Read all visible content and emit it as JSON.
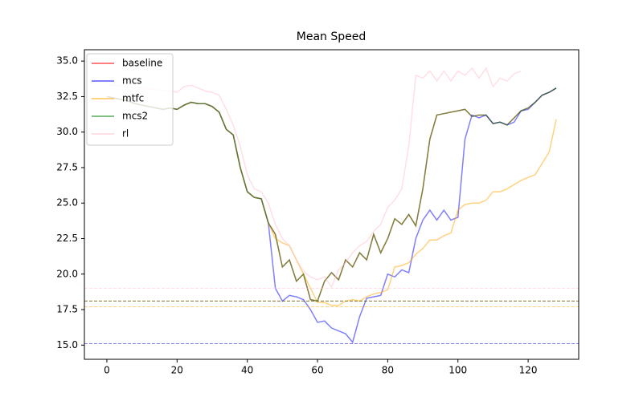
{
  "chart_data": {
    "type": "line",
    "title": "Mean Speed",
    "x": [
      0,
      2,
      4,
      6,
      8,
      10,
      12,
      14,
      16,
      18,
      20,
      22,
      24,
      26,
      28,
      30,
      32,
      34,
      36,
      38,
      40,
      42,
      44,
      46,
      48,
      50,
      52,
      54,
      56,
      58,
      60,
      62,
      64,
      66,
      68,
      70,
      72,
      74,
      76,
      78,
      80,
      82,
      84,
      86,
      88,
      90,
      92,
      94,
      96,
      98,
      100,
      102,
      104,
      106,
      108,
      110,
      112,
      114,
      116,
      118,
      120,
      122,
      124,
      126,
      128
    ],
    "series": [
      {
        "name": "baseline",
        "color": "red",
        "hline": 18.1,
        "values": [
          32.5,
          32.4,
          32.3,
          32.2,
          32.0,
          31.9,
          31.8,
          31.7,
          31.6,
          31.7,
          31.6,
          31.9,
          32.1,
          32.0,
          32.0,
          31.8,
          31.4,
          30.2,
          29.8,
          27.5,
          25.8,
          25.4,
          25.3,
          23.6,
          22.8,
          20.5,
          21.0,
          19.5,
          20.0,
          18.2,
          18.1,
          19.5,
          20.1,
          19.6,
          21.0,
          20.5,
          21.5,
          21.0,
          22.8,
          21.5,
          22.5,
          23.9,
          23.5,
          24.2,
          23.4,
          26.0,
          29.5,
          31.2,
          31.3,
          31.4,
          31.5,
          31.6,
          31.1,
          31.2,
          31.2,
          30.6,
          30.7,
          30.5,
          31.0,
          31.5,
          31.7,
          32.1,
          32.6,
          32.8,
          33.1
        ]
      },
      {
        "name": "mcs",
        "color": "blue",
        "hline": 15.1,
        "values": [
          32.5,
          32.4,
          32.3,
          32.2,
          32.0,
          31.9,
          31.8,
          31.7,
          31.6,
          31.7,
          31.6,
          31.9,
          32.1,
          32.0,
          32.0,
          31.8,
          31.4,
          30.2,
          29.8,
          27.5,
          25.8,
          25.4,
          25.3,
          23.6,
          19.0,
          18.1,
          18.5,
          18.4,
          18.2,
          17.5,
          16.6,
          16.7,
          16.2,
          16.0,
          15.8,
          15.2,
          17.0,
          18.3,
          18.4,
          18.5,
          20.0,
          19.8,
          20.3,
          20.1,
          22.5,
          23.8,
          24.5,
          23.8,
          24.5,
          23.8,
          24.0,
          29.5,
          31.2,
          31.0,
          31.2,
          30.6,
          30.7,
          30.5,
          30.7,
          31.5,
          31.6,
          32.1,
          32.6,
          32.8,
          33.1
        ]
      },
      {
        "name": "mtfc",
        "color": "orange",
        "hline": 17.7,
        "values": [
          32.5,
          32.4,
          32.3,
          32.2,
          32.0,
          31.9,
          31.8,
          31.7,
          31.6,
          31.7,
          31.6,
          31.9,
          32.1,
          32.0,
          32.0,
          31.8,
          31.4,
          30.2,
          29.8,
          27.5,
          25.8,
          25.4,
          25.3,
          23.6,
          22.5,
          22.2,
          22.0,
          21.0,
          20.0,
          19.0,
          18.0,
          18.0,
          17.8,
          17.8,
          18.1,
          18.2,
          18.1,
          18.4,
          18.6,
          18.7,
          18.9,
          20.5,
          20.6,
          20.8,
          21.4,
          21.8,
          22.4,
          22.4,
          22.7,
          22.9,
          24.5,
          24.9,
          25.0,
          25.0,
          25.2,
          25.8,
          25.8,
          26.0,
          26.3,
          26.6,
          26.8,
          27.0,
          27.8,
          28.6,
          30.9
        ]
      },
      {
        "name": "mcs2",
        "color": "green",
        "hline": 18.1,
        "values": [
          32.5,
          32.4,
          32.3,
          32.2,
          32.0,
          31.9,
          31.8,
          31.7,
          31.6,
          31.7,
          31.6,
          31.9,
          32.1,
          32.0,
          32.0,
          31.8,
          31.4,
          30.2,
          29.8,
          27.5,
          25.8,
          25.4,
          25.3,
          23.6,
          22.8,
          20.5,
          21.0,
          19.5,
          20.0,
          18.2,
          18.1,
          19.5,
          20.1,
          19.6,
          21.0,
          20.5,
          21.5,
          21.0,
          22.8,
          21.5,
          22.5,
          23.9,
          23.5,
          24.2,
          23.4,
          26.0,
          29.5,
          31.2,
          31.3,
          31.4,
          31.5,
          31.6,
          31.1,
          31.2,
          31.2,
          30.6,
          30.7,
          30.5,
          31.0,
          31.5,
          31.7,
          32.1,
          32.6,
          32.8,
          33.1
        ]
      },
      {
        "name": "rl",
        "color": "pink",
        "hline": 19.0,
        "values": [
          33.3,
          33.3,
          33.2,
          33.2,
          33.1,
          33.1,
          33.0,
          33.0,
          32.9,
          32.9,
          32.8,
          33.2,
          33.3,
          33.1,
          32.9,
          32.8,
          32.6,
          31.6,
          30.5,
          29.0,
          27.0,
          26.0,
          25.8,
          25.0,
          23.5,
          22.5,
          22.0,
          21.0,
          20.2,
          19.8,
          19.6,
          19.8,
          19.1,
          20.3,
          20.8,
          21.5,
          22.0,
          22.3,
          23.0,
          23.5,
          24.7,
          25.2,
          26.0,
          29.0,
          34.0,
          33.8,
          34.3,
          33.6,
          34.3,
          33.6,
          34.3,
          34.0,
          34.5,
          33.8,
          34.5,
          33.2,
          33.8,
          33.6,
          34.1,
          34.3,
          null,
          null,
          null,
          null,
          null
        ]
      }
    ],
    "alpha": 0.5,
    "legend": "upper-left",
    "xlim": [
      -6.4,
      134.4
    ],
    "xticks": [
      0,
      20,
      40,
      60,
      80,
      100,
      120
    ],
    "ylim": [
      14.0,
      35.8
    ],
    "yticks": [
      {
        "value": 15,
        "label": "15.0"
      },
      {
        "value": 17.5,
        "label": "17.5"
      },
      {
        "value": 20,
        "label": "20.0"
      },
      {
        "value": 22.5,
        "label": "22.5"
      },
      {
        "value": 25,
        "label": "25.0"
      },
      {
        "value": 27.5,
        "label": "27.5"
      },
      {
        "value": 30,
        "label": "30.0"
      },
      {
        "value": 32.5,
        "label": "32.5"
      },
      {
        "value": 35,
        "label": "35.0"
      }
    ]
  }
}
